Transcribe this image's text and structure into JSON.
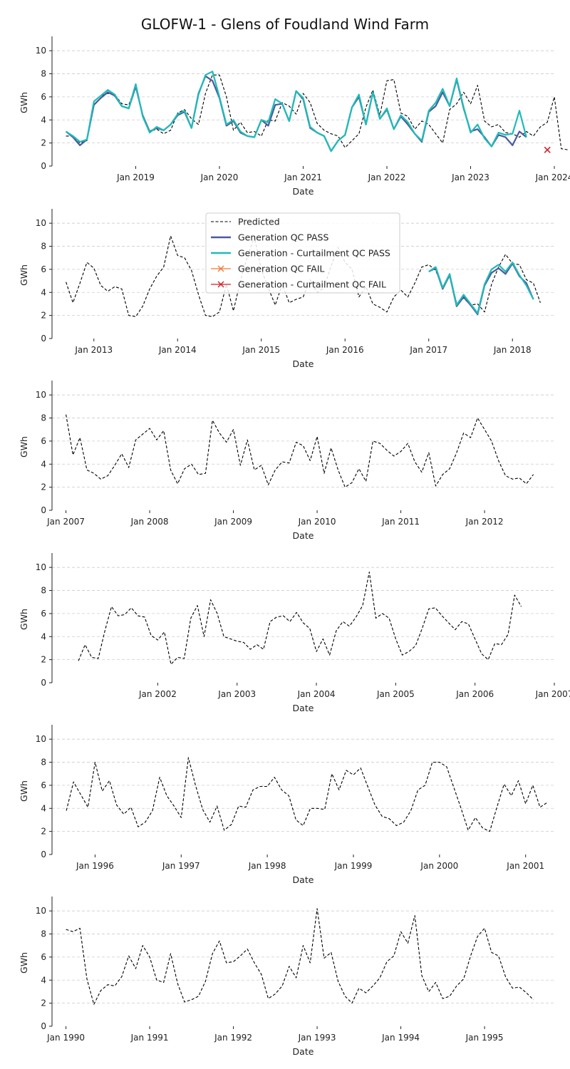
{
  "title": "GLOFW-1 - Glens of Foudland Wind Farm",
  "colors": {
    "predicted": "#000000",
    "gen_pass": "#4a5a9c",
    "curt_pass": "#1fbcb8",
    "gen_fail": "#f07a3a",
    "curt_fail": "#d11f2a",
    "grid": "#cccccc"
  },
  "legend": {
    "placement": "top-center",
    "entries": [
      {
        "label": "Predicted",
        "style": "dashed",
        "color": "#000000"
      },
      {
        "label": "Generation QC PASS",
        "style": "solid",
        "color": "#4a5a9c"
      },
      {
        "label": "Generation - Curtailment QC PASS",
        "style": "solid",
        "color": "#1fbcb8"
      },
      {
        "label": "Generation QC FAIL",
        "style": "x",
        "color": "#f07a3a"
      },
      {
        "label": "Generation - Curtailment QC FAIL",
        "style": "x",
        "color": "#d11f2a"
      }
    ]
  },
  "chart_data": [
    {
      "type": "line",
      "xlabel": "Date",
      "ylabel": "GWh",
      "ylim": [
        0,
        11
      ],
      "yticks": [
        0,
        2,
        4,
        6,
        8,
        10
      ],
      "x_start": "2018-03",
      "xlim": [
        "2018-01",
        "2024-01"
      ],
      "xticks": [
        "2019-01",
        "2020-01",
        "2021-01",
        "2022-01",
        "2023-01",
        "2024-01"
      ],
      "xtick_labels": [
        "Jan 2019",
        "Jan 2020",
        "Jan 2021",
        "Jan 2022",
        "Jan 2023",
        "Jan 2024"
      ],
      "grid": true,
      "series": [
        {
          "name": "Predicted",
          "values": [
            2.6,
            2.6,
            2.0,
            2.2,
            5.6,
            6.1,
            6.3,
            6.2,
            5.4,
            5.3,
            6.9,
            4.3,
            3.0,
            3.2,
            2.8,
            3.1,
            4.6,
            4.9,
            4.1,
            3.6,
            6.3,
            7.9,
            7.9,
            6.0,
            3.1,
            3.8,
            2.9,
            3.0,
            2.6,
            4.0,
            3.9,
            5.5,
            5.2,
            4.5,
            6.3,
            5.5,
            3.7,
            3.1,
            2.8,
            2.6,
            1.6,
            2.2,
            2.8,
            5.1,
            6.6,
            4.4,
            7.4,
            7.5,
            4.6,
            4.3,
            3.2,
            3.9,
            3.6,
            2.8,
            2.0,
            4.9,
            5.4,
            6.4,
            5.4,
            7.0,
            3.9,
            3.4,
            3.6,
            2.9,
            2.8,
            2.5,
            3.0,
            2.6,
            3.4,
            3.8,
            6.0,
            1.5,
            1.4
          ]
        },
        {
          "name": "Generation QC PASS",
          "values": [
            3.0,
            2.5,
            1.8,
            2.3,
            5.3,
            5.9,
            6.4,
            6.1,
            5.2,
            5.0,
            6.9,
            4.4,
            3.0,
            3.3,
            3.1,
            3.6,
            4.4,
            4.7,
            3.3,
            6.3,
            7.8,
            7.4,
            5.9,
            3.5,
            3.9,
            2.9,
            2.6,
            2.5,
            4.0,
            3.5,
            5.3,
            5.4,
            3.9,
            6.5,
            5.8,
            3.3,
            2.9,
            2.6,
            1.3,
            2.2,
            2.7,
            5.1,
            6.0,
            3.6,
            6.4,
            4.1,
            4.9,
            3.2,
            4.3,
            3.6,
            2.8,
            2.1,
            4.7,
            5.2,
            6.4,
            5.2,
            7.5,
            5.0,
            3.0,
            3.2,
            2.5,
            1.7,
            2.7,
            2.5,
            1.8,
            3.0,
            2.5
          ]
        },
        {
          "name": "Generation - Curtailment QC PASS",
          "values": [
            3.0,
            2.6,
            2.1,
            2.3,
            5.6,
            6.1,
            6.6,
            6.2,
            5.2,
            5.0,
            7.1,
            4.3,
            2.9,
            3.4,
            3.1,
            3.6,
            4.5,
            4.8,
            3.3,
            6.2,
            7.9,
            8.2,
            6.0,
            3.6,
            4.0,
            3.0,
            2.6,
            2.5,
            4.0,
            3.8,
            5.8,
            5.4,
            3.9,
            6.5,
            5.9,
            3.4,
            2.9,
            2.6,
            1.3,
            2.2,
            2.7,
            5.1,
            6.2,
            3.6,
            6.4,
            4.1,
            5.0,
            3.2,
            4.4,
            3.8,
            2.8,
            2.2,
            4.8,
            5.5,
            6.7,
            5.2,
            7.6,
            5.1,
            2.9,
            3.6,
            2.4,
            1.7,
            2.9,
            2.7,
            2.8,
            4.8,
            2.5
          ]
        },
        {
          "name": "Generation - Curtailment QC FAIL",
          "points": [
            [
              "2023-12",
              1.4
            ]
          ]
        }
      ]
    },
    {
      "type": "line",
      "xlabel": "Date",
      "ylabel": "GWh",
      "ylim": [
        0,
        11
      ],
      "yticks": [
        0,
        2,
        4,
        6,
        8,
        10
      ],
      "x_start": "2012-09",
      "xlim": [
        "2012-07",
        "2018-07"
      ],
      "xticks": [
        "2013-01",
        "2014-01",
        "2015-01",
        "2016-01",
        "2017-01",
        "2018-01"
      ],
      "xtick_labels": [
        "Jan 2013",
        "Jan 2014",
        "Jan 2015",
        "Jan 2016",
        "Jan 2017",
        "Jan 2018"
      ],
      "grid": true,
      "series": [
        {
          "name": "Predicted",
          "values": [
            4.9,
            3.1,
            4.8,
            6.6,
            6.1,
            4.6,
            4.1,
            4.5,
            4.3,
            2.0,
            1.9,
            2.8,
            4.3,
            5.4,
            6.2,
            8.9,
            7.2,
            7.0,
            5.9,
            3.8,
            2.0,
            1.9,
            2.3,
            4.7,
            2.4,
            5.0,
            7.1,
            8.8,
            6.0,
            4.4,
            2.9,
            4.7,
            3.1,
            3.4,
            3.6,
            5.1,
            4.0,
            4.4,
            6.3,
            7.9,
            6.6,
            6.0,
            3.6,
            4.5,
            3.0,
            2.7,
            2.3,
            3.6,
            4.2,
            3.6,
            4.8,
            6.2,
            6.4,
            5.9,
            4.4,
            5.4,
            3.1,
            3.5,
            2.9,
            3.0,
            2.3,
            4.7,
            6.2,
            7.3,
            6.5,
            6.4,
            5.1,
            4.8,
            3.1
          ]
        },
        {
          "name": "Generation QC PASS",
          "x_start": "2017-01",
          "values": [
            5.8,
            6.1,
            4.3,
            5.5,
            2.8,
            3.6,
            2.9,
            2.1,
            4.6,
            5.7,
            6.1,
            5.6,
            6.5,
            5.4,
            4.8,
            3.4
          ]
        },
        {
          "name": "Generation - Curtailment QC PASS",
          "x_start": "2017-01",
          "values": [
            5.8,
            6.2,
            4.4,
            5.6,
            2.9,
            3.8,
            3.0,
            2.2,
            4.7,
            6.0,
            6.4,
            5.8,
            6.6,
            5.5,
            4.6,
            3.4
          ]
        }
      ]
    },
    {
      "type": "line",
      "xlabel": "Date",
      "ylabel": "GWh",
      "ylim": [
        0,
        11
      ],
      "yticks": [
        0,
        2,
        4,
        6,
        8,
        10
      ],
      "x_start": "2007-01",
      "xlim": [
        "2006-11",
        "2012-11"
      ],
      "xticks": [
        "2007-01",
        "2008-01",
        "2009-01",
        "2010-01",
        "2011-01",
        "2012-01"
      ],
      "xtick_labels": [
        "Jan 2007",
        "Jan 2008",
        "Jan 2009",
        "Jan 2010",
        "Jan 2011",
        "Jan 2012"
      ],
      "grid": true,
      "series": [
        {
          "name": "Predicted",
          "values": [
            8.3,
            4.8,
            6.3,
            3.5,
            3.2,
            2.7,
            3.0,
            3.9,
            4.9,
            3.7,
            6.1,
            6.6,
            7.1,
            6.1,
            6.9,
            3.5,
            2.3,
            3.6,
            4.0,
            3.1,
            3.2,
            7.8,
            6.7,
            5.9,
            7.0,
            3.9,
            6.1,
            3.5,
            3.9,
            2.2,
            3.5,
            4.2,
            4.1,
            5.9,
            5.6,
            4.3,
            6.4,
            3.2,
            5.4,
            3.5,
            2.0,
            2.4,
            3.6,
            2.5,
            6.0,
            5.8,
            5.2,
            4.7,
            5.1,
            5.8,
            4.2,
            3.3,
            5.0,
            2.1,
            3.1,
            3.6,
            5.0,
            6.7,
            6.3,
            8.0,
            7.0,
            6.0,
            4.3,
            3.0,
            2.7,
            2.8,
            2.3,
            3.1
          ]
        }
      ]
    },
    {
      "type": "line",
      "xlabel": "Date",
      "ylabel": "GWh",
      "ylim": [
        0,
        11
      ],
      "yticks": [
        0,
        2,
        4,
        6,
        8,
        10
      ],
      "x_start": "2001-01",
      "xlim": [
        "2000-09",
        "2007-01"
      ],
      "xticks": [
        "2002-01",
        "2003-01",
        "2004-01",
        "2005-01",
        "2006-01",
        "2007-01"
      ],
      "xtick_labels": [
        "Jan 2002",
        "Jan 2003",
        "Jan 2004",
        "Jan 2005",
        "Jan 2006",
        "Jan 2007"
      ],
      "grid": true,
      "series": [
        {
          "name": "Predicted",
          "values": [
            1.9,
            3.3,
            2.2,
            2.1,
            4.5,
            6.6,
            5.8,
            5.9,
            6.5,
            5.8,
            5.7,
            4.1,
            3.7,
            4.4,
            1.6,
            2.2,
            2.1,
            5.6,
            6.7,
            4.0,
            7.2,
            6.0,
            4.0,
            3.8,
            3.6,
            3.5,
            2.9,
            3.3,
            2.9,
            5.3,
            5.7,
            5.8,
            5.3,
            6.1,
            5.2,
            4.7,
            2.7,
            3.8,
            2.4,
            4.5,
            5.3,
            4.9,
            5.7,
            6.7,
            9.6,
            5.6,
            6.0,
            5.6,
            3.8,
            2.4,
            2.7,
            3.2,
            4.7,
            6.4,
            6.5,
            5.8,
            5.2,
            4.6,
            5.3,
            5.1,
            3.8,
            2.5,
            2.0,
            3.4,
            3.3,
            4.2,
            7.6,
            6.6
          ]
        }
      ]
    },
    {
      "type": "line",
      "xlabel": "Date",
      "ylabel": "GWh",
      "ylim": [
        0,
        11
      ],
      "yticks": [
        0,
        2,
        4,
        6,
        8,
        10
      ],
      "x_start": "1995-09",
      "xlim": [
        "1995-07",
        "2001-05"
      ],
      "xticks": [
        "1996-01",
        "1997-01",
        "1998-01",
        "1999-01",
        "2000-01",
        "2001-01"
      ],
      "xtick_labels": [
        "Jan 1996",
        "Jan 1997",
        "Jan 1998",
        "Jan 1999",
        "Jan 2000",
        "Jan 2001"
      ],
      "grid": true,
      "series": [
        {
          "name": "Predicted",
          "values": [
            3.8,
            6.3,
            5.2,
            4.1,
            8.0,
            5.5,
            6.4,
            4.3,
            3.5,
            4.1,
            2.4,
            2.8,
            3.8,
            6.7,
            5.1,
            4.2,
            3.2,
            8.4,
            6.0,
            3.9,
            2.8,
            4.2,
            2.1,
            2.6,
            4.2,
            4.1,
            5.6,
            5.9,
            5.9,
            6.7,
            5.6,
            5.1,
            3.0,
            2.5,
            4.0,
            4.0,
            3.9,
            7.0,
            5.6,
            7.3,
            6.9,
            7.5,
            5.9,
            4.3,
            3.3,
            3.1,
            2.5,
            2.8,
            3.8,
            5.6,
            6.0,
            8.0,
            8.0,
            7.6,
            5.8,
            4.0,
            2.1,
            3.2,
            2.3,
            2.0,
            4.1,
            6.1,
            5.1,
            6.4,
            4.4,
            6.0,
            4.1,
            4.5
          ]
        }
      ]
    },
    {
      "type": "line",
      "xlabel": "Date",
      "ylabel": "GWh",
      "ylim": [
        0,
        11
      ],
      "yticks": [
        0,
        2,
        4,
        6,
        8,
        10
      ],
      "x_start": "1990-01",
      "xlim": [
        "1989-11",
        "1995-11"
      ],
      "xticks": [
        "1990-01",
        "1991-01",
        "1992-01",
        "1993-01",
        "1994-01",
        "1995-01"
      ],
      "xtick_labels": [
        "Jan 1990",
        "Jan 1991",
        "Jan 1992",
        "Jan 1993",
        "Jan 1994",
        "Jan 1995"
      ],
      "grid": true,
      "series": [
        {
          "name": "Predicted",
          "values": [
            8.4,
            8.2,
            8.5,
            4.1,
            1.9,
            3.1,
            3.6,
            3.5,
            4.3,
            6.1,
            5.0,
            7.0,
            6.0,
            4.0,
            3.8,
            6.3,
            3.7,
            2.1,
            2.3,
            2.6,
            3.9,
            6.3,
            7.4,
            5.5,
            5.6,
            6.1,
            6.7,
            5.5,
            4.5,
            2.4,
            2.8,
            3.5,
            5.2,
            4.2,
            7.0,
            5.5,
            10.2,
            5.9,
            6.4,
            3.9,
            2.6,
            2.0,
            3.3,
            2.9,
            3.5,
            4.2,
            5.6,
            6.1,
            8.2,
            7.2,
            9.6,
            4.4,
            3.0,
            3.8,
            2.4,
            2.6,
            3.5,
            4.1,
            6.1,
            7.8,
            8.5,
            6.4,
            6.1,
            4.3,
            3.3,
            3.4,
            2.9,
            2.3
          ]
        }
      ]
    }
  ]
}
